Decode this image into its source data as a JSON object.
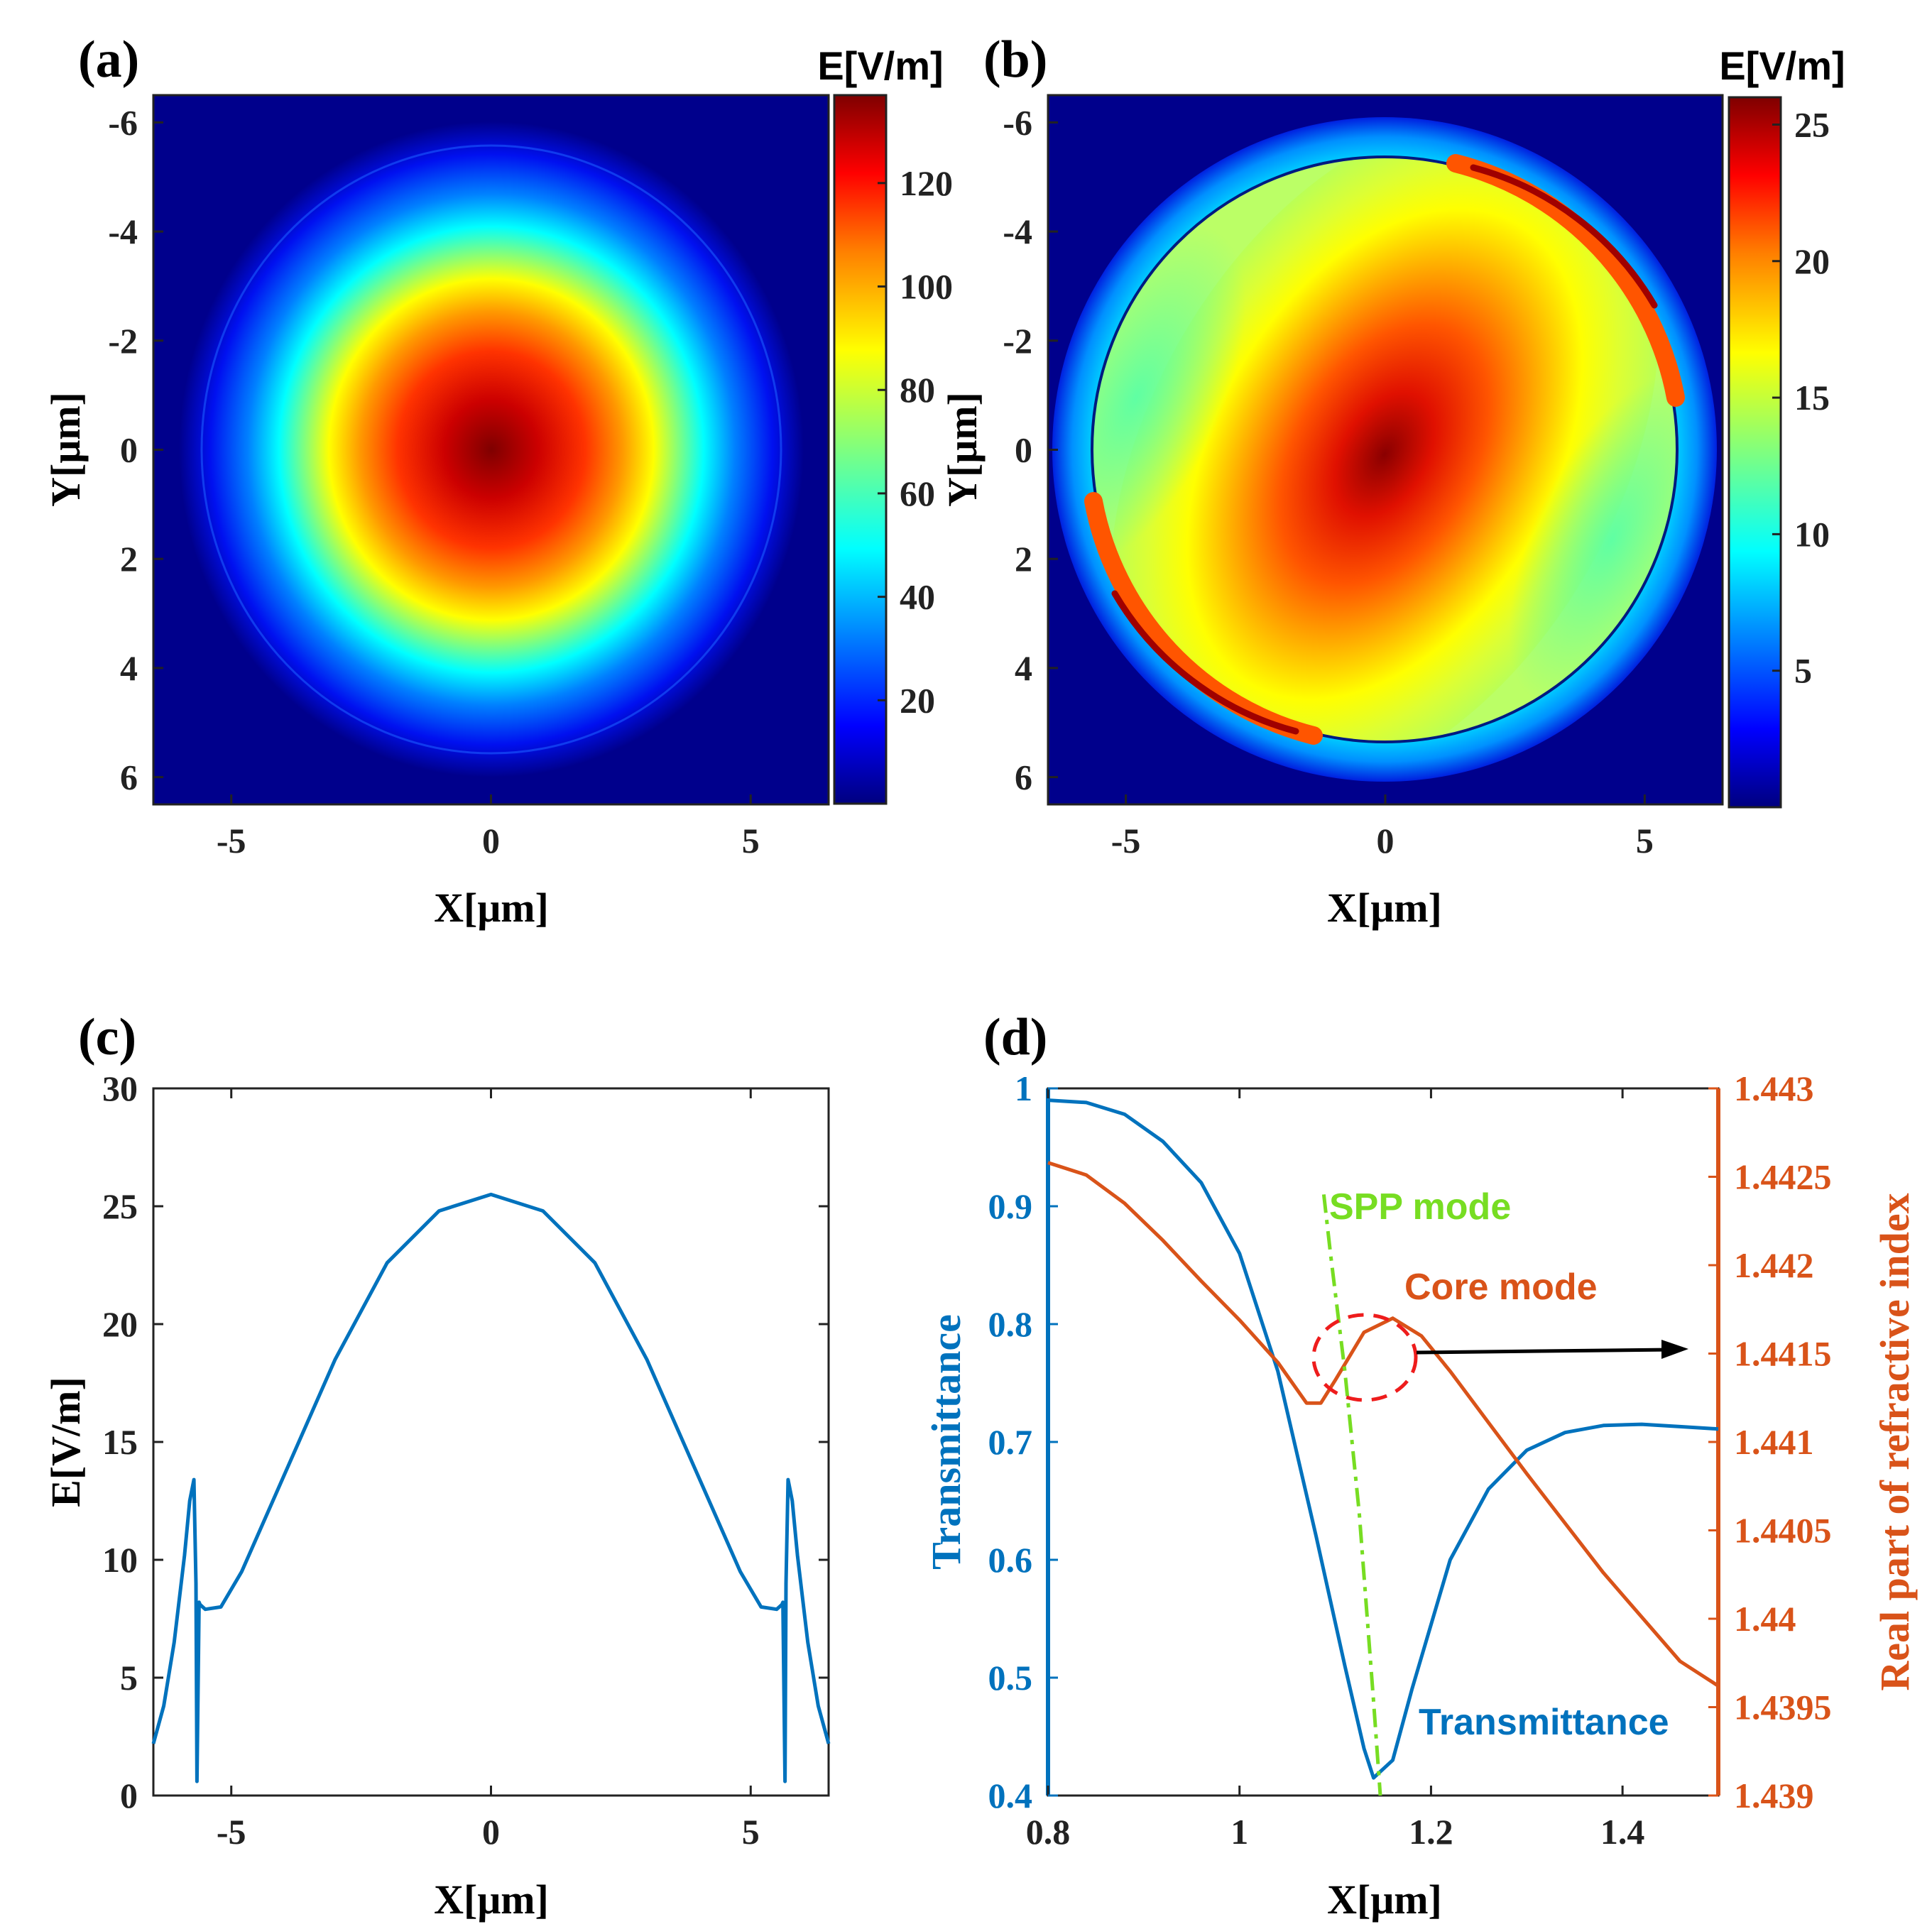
{
  "colors": {
    "line_blue": "#0072BD",
    "line_orange": "#D95319",
    "spp_green": "#77DD22",
    "circle_red": "#EE1C1C",
    "arrow": "#000000",
    "jet_stops": [
      "#00007F",
      "#0000FF",
      "#007FFF",
      "#00FFFF",
      "#7FFF7F",
      "#FFFF00",
      "#FF7F00",
      "#FF0000",
      "#7F0000"
    ]
  },
  "panels": {
    "a": {
      "label": "(a)"
    },
    "b": {
      "label": "(b)"
    },
    "c": {
      "label": "(c)"
    },
    "d": {
      "label": "(d)"
    }
  },
  "chart_data": [
    {
      "panel": "(a)",
      "type": "heatmap",
      "xlabel": "X[μm]",
      "ylabel": "Y[μm]",
      "xlim": [
        -6.5,
        6.5
      ],
      "ylim": [
        -6.5,
        6.5
      ],
      "y_reversed": true,
      "x_ticks": [
        "-5",
        "0",
        "5"
      ],
      "y_ticks": [
        "-6",
        "-4",
        "-2",
        "0",
        "2",
        "4",
        "6"
      ],
      "colorbar_label": "E[V/m]",
      "colorbar_range": [
        0,
        137
      ],
      "colorbar_ticks": [
        "20",
        "40",
        "60",
        "80",
        "100",
        "120"
      ],
      "colormap": "jet",
      "description_values": {
        "peak": 137,
        "peak_at": [
          0,
          0
        ]
      }
    },
    {
      "panel": "(b)",
      "type": "heatmap",
      "xlabel": "X[μm]",
      "ylabel": "Y[μm]",
      "xlim": [
        -6.5,
        6.5
      ],
      "ylim": [
        -6.5,
        6.5
      ],
      "y_reversed": true,
      "x_ticks": [
        "-5",
        "0",
        "5"
      ],
      "y_ticks": [
        "-6",
        "-4",
        "-2",
        "0",
        "2",
        "4",
        "6"
      ],
      "colorbar_label": "E[V/m]",
      "colorbar_range": [
        0,
        26
      ],
      "colorbar_ticks": [
        "5",
        "10",
        "15",
        "20",
        "25"
      ],
      "colormap": "jet",
      "description_values": {
        "peak": 25.5,
        "core_radius": 5.6,
        "outer_radius": 6.4
      }
    },
    {
      "panel": "(c)",
      "type": "line",
      "xlabel": "X[μm]",
      "ylabel": "E[V/m]",
      "xlim": [
        -6.5,
        6.5
      ],
      "ylim": [
        0,
        30
      ],
      "x_ticks": [
        "-5",
        "0",
        "5"
      ],
      "y_ticks": [
        "0",
        "5",
        "10",
        "15",
        "20",
        "25",
        "30"
      ],
      "series": [
        {
          "x": [
            -6.5,
            -6.3,
            -6.1,
            -5.9,
            -5.8,
            -5.72,
            -5.68,
            -5.66,
            -5.62,
            -5.6,
            -5.5,
            -5.2,
            -4.8,
            -4.0,
            -3.0,
            -2.0,
            -1.0,
            0.0,
            1.0,
            2.0,
            3.0,
            4.0,
            4.8,
            5.2,
            5.5,
            5.6,
            5.62,
            5.66,
            5.68,
            5.72,
            5.8,
            5.9,
            6.1,
            6.3,
            6.5
          ],
          "values": [
            2.2,
            3.8,
            6.5,
            10.2,
            12.5,
            13.4,
            9.0,
            0.6,
            8.2,
            8.1,
            7.9,
            8.0,
            9.5,
            13.5,
            18.5,
            22.6,
            24.8,
            25.5,
            24.8,
            22.6,
            18.5,
            13.5,
            9.5,
            8.0,
            7.9,
            8.1,
            8.2,
            0.6,
            9.0,
            13.4,
            12.5,
            10.2,
            6.5,
            3.8,
            2.2
          ]
        }
      ]
    },
    {
      "panel": "(d)",
      "type": "line",
      "xlabel": "X[μm]",
      "ylabel": "Transmittance",
      "y2label": "Real part of refractive index",
      "xlim": [
        0.8,
        1.5
      ],
      "ylim": [
        0.4,
        1.0
      ],
      "y2lim": [
        1.439,
        1.443
      ],
      "x_ticks": [
        "0.8",
        "1",
        "1.2",
        "1.4"
      ],
      "y_ticks": [
        "0.4",
        "0.5",
        "0.6",
        "0.7",
        "0.8",
        "0.9",
        "1"
      ],
      "y2_ticks": [
        "1.439",
        "1.4395",
        "1.44",
        "1.4405",
        "1.441",
        "1.4415",
        "1.442",
        "1.4425",
        "1.443"
      ],
      "annotations": [
        "SPP mode",
        "Core mode",
        "Transmittance"
      ],
      "series": [
        {
          "name": "Transmittance",
          "axis": "left",
          "x": [
            0.8,
            0.84,
            0.88,
            0.92,
            0.96,
            1.0,
            1.04,
            1.08,
            1.11,
            1.13,
            1.14,
            1.16,
            1.18,
            1.22,
            1.26,
            1.3,
            1.34,
            1.38,
            1.42,
            1.46,
            1.5
          ],
          "values": [
            0.99,
            0.988,
            0.978,
            0.955,
            0.92,
            0.86,
            0.76,
            0.62,
            0.51,
            0.44,
            0.415,
            0.43,
            0.49,
            0.6,
            0.66,
            0.693,
            0.708,
            0.714,
            0.715,
            0.713,
            0.711
          ]
        },
        {
          "name": "Core mode",
          "axis": "right",
          "x": [
            0.8,
            0.84,
            0.88,
            0.92,
            0.96,
            1.0,
            1.04,
            1.07,
            1.085,
            1.1,
            1.13,
            1.16,
            1.19,
            1.22,
            1.26,
            1.3,
            1.34,
            1.38,
            1.42,
            1.46,
            1.48,
            1.5
          ],
          "values": [
            1.44258,
            1.44251,
            1.44235,
            1.44214,
            1.44191,
            1.44169,
            1.44145,
            1.44122,
            1.44122,
            1.44135,
            1.44162,
            1.4417,
            1.4416,
            1.4414,
            1.44111,
            1.44082,
            1.44054,
            1.44026,
            1.44001,
            1.43976,
            1.43969,
            1.43962
          ]
        },
        {
          "name": "SPP mode",
          "axis": "left",
          "style": "dash-dot",
          "x": [
            1.088,
            1.095,
            1.11,
            1.125,
            1.14,
            1.147
          ],
          "values": [
            0.91,
            0.86,
            0.76,
            0.64,
            0.48,
            0.4
          ]
        }
      ]
    }
  ]
}
